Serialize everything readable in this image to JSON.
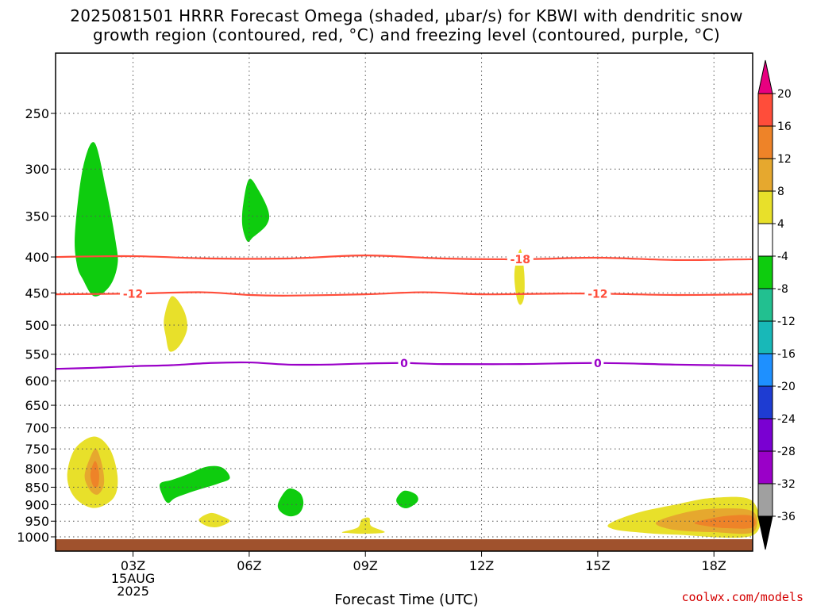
{
  "title": {
    "line1": "2025081501 HRRR Forecast Omega (shaded, μbar/s) for KBWI with dendritic snow",
    "line2": "growth region (contoured, red, °C) and freezing level (contoured, purple, °C)"
  },
  "credit": "coolwx.com/models",
  "colors": {
    "green": "#0ecc0e",
    "yellow": "#e8e02a",
    "lightorange": "#e6a82e",
    "orange": "#ee8328",
    "red": "#ff4d3a",
    "purple": "#9a00c8",
    "ground": "#a0522d",
    "gridline": "#555555"
  },
  "chart_data": {
    "type": "heatmap",
    "title": "2025081501 HRRR Forecast Omega (shaded, μbar/s) for KBWI with dendritic snow growth region (contoured, red, °C) and freezing level (contoured, purple, °C)",
    "xlabel": "Forecast Time (UTC)",
    "ylabel": "",
    "x_ticks": [
      {
        "hour": 3,
        "label": "03Z",
        "date": "15AUG",
        "year": "2025"
      },
      {
        "hour": 6,
        "label": "06Z"
      },
      {
        "hour": 9,
        "label": "09Z"
      },
      {
        "hour": 12,
        "label": "12Z"
      },
      {
        "hour": 15,
        "label": "15Z"
      },
      {
        "hour": 18,
        "label": "18Z"
      }
    ],
    "xlim": [
      1,
      19
    ],
    "y_ticks": [
      250,
      300,
      350,
      400,
      450,
      500,
      550,
      600,
      650,
      700,
      750,
      800,
      850,
      900,
      950,
      1000
    ],
    "ylim": [
      1000,
      200
    ],
    "y_scale": "log",
    "grid": true,
    "colorbar": {
      "labels": [
        "20",
        "16",
        "12",
        "8",
        "4",
        "-4",
        "-8",
        "-12",
        "-16",
        "-20",
        "-24",
        "-28",
        "-32",
        "-36"
      ],
      "colors": [
        "#ff4d3a",
        "#ee8328",
        "#e6a82e",
        "#e8e02a",
        "#ffffff",
        "#0ecc0e",
        "#22c090",
        "#18b8b8",
        "#1e90ff",
        "#1e3cd2",
        "#7a00d2",
        "#9a00c8",
        "#a0a0a0"
      ],
      "top_arrow": "#e80080",
      "bottom_arrow": "#000000"
    },
    "contours": [
      {
        "name": "-18",
        "color": "red",
        "label_at_hour": 13,
        "points": [
          [
            1,
            400
          ],
          [
            3,
            399
          ],
          [
            5,
            402
          ],
          [
            7,
            402
          ],
          [
            9,
            398
          ],
          [
            11,
            402
          ],
          [
            13,
            403
          ],
          [
            15,
            401
          ],
          [
            17,
            404
          ],
          [
            19,
            403
          ]
        ]
      },
      {
        "name": "-12",
        "color": "red",
        "label_at_hour": 3,
        "label_at_hour2": 15,
        "points": [
          [
            1,
            452
          ],
          [
            3,
            451
          ],
          [
            4.8,
            449
          ],
          [
            6,
            453
          ],
          [
            7,
            454
          ],
          [
            9,
            452
          ],
          [
            10.5,
            449
          ],
          [
            12,
            452
          ],
          [
            14,
            451
          ],
          [
            15,
            451
          ],
          [
            17,
            453
          ],
          [
            19,
            452
          ]
        ]
      },
      {
        "name": "0",
        "color": "purple",
        "label_at_hour": 10,
        "label_at_hour2": 15,
        "points": [
          [
            1,
            577
          ],
          [
            2,
            575
          ],
          [
            3,
            572
          ],
          [
            4,
            570
          ],
          [
            5,
            566
          ],
          [
            6,
            565
          ],
          [
            7,
            569
          ],
          [
            8,
            569
          ],
          [
            9,
            567
          ],
          [
            10,
            566
          ],
          [
            11,
            568
          ],
          [
            13,
            568
          ],
          [
            15,
            566
          ],
          [
            17,
            569
          ],
          [
            19,
            571
          ]
        ]
      }
    ],
    "shaded_regions": [
      {
        "class": "4 to 8",
        "color": "yellow",
        "points": [
          [
            1.3,
            820
          ],
          [
            1.5,
            750
          ],
          [
            2,
            720
          ],
          [
            2.4,
            750
          ],
          [
            2.6,
            820
          ],
          [
            2.5,
            880
          ],
          [
            2,
            910
          ],
          [
            1.5,
            880
          ]
        ]
      },
      {
        "class": "8 to 12",
        "color": "lightorange",
        "points": [
          [
            1.75,
            820
          ],
          [
            1.9,
            770
          ],
          [
            2.05,
            750
          ],
          [
            2.2,
            790
          ],
          [
            2.25,
            840
          ],
          [
            2.1,
            870
          ],
          [
            1.9,
            860
          ]
        ]
      },
      {
        "class": "12 to 16",
        "color": "orange",
        "points": [
          [
            1.9,
            815
          ],
          [
            2.02,
            780
          ],
          [
            2.12,
            810
          ],
          [
            2.1,
            845
          ],
          [
            1.98,
            848
          ]
        ]
      },
      {
        "class": "-4 to -8",
        "color": "green",
        "points": [
          [
            1.5,
            370
          ],
          [
            1.7,
            300
          ],
          [
            2,
            275
          ],
          [
            2.3,
            320
          ],
          [
            2.55,
            380
          ],
          [
            2.6,
            410
          ],
          [
            2.4,
            440
          ],
          [
            2,
            455
          ],
          [
            1.7,
            430
          ],
          [
            1.55,
            410
          ]
        ]
      },
      {
        "class": "-4 to -8",
        "color": "green",
        "points": [
          [
            5.85,
            335
          ],
          [
            6,
            310
          ],
          [
            6.25,
            322
          ],
          [
            6.5,
            345
          ],
          [
            6.45,
            360
          ],
          [
            6.1,
            375
          ],
          [
            5.95,
            380
          ],
          [
            5.82,
            360
          ]
        ]
      },
      {
        "class": "4 to 8",
        "color": "yellow",
        "points": [
          [
            3.8,
            490
          ],
          [
            4,
            455
          ],
          [
            4.3,
            475
          ],
          [
            4.4,
            505
          ],
          [
            4.2,
            535
          ],
          [
            3.95,
            545
          ],
          [
            3.85,
            520
          ]
        ]
      },
      {
        "class": "-4 to -8",
        "color": "green",
        "points": [
          [
            3.7,
            840
          ],
          [
            4,
            830
          ],
          [
            4.4,
            815
          ],
          [
            4.9,
            795
          ],
          [
            5.3,
            797
          ],
          [
            5.5,
            825
          ],
          [
            5.2,
            840
          ],
          [
            4.6,
            860
          ],
          [
            4.1,
            880
          ],
          [
            3.9,
            895
          ],
          [
            3.75,
            870
          ]
        ]
      },
      {
        "class": "4 to 8",
        "color": "yellow",
        "points": [
          [
            4.7,
            945
          ],
          [
            5,
            925
          ],
          [
            5.3,
            935
          ],
          [
            5.5,
            950
          ],
          [
            5.2,
            968
          ],
          [
            4.9,
            965
          ]
        ]
      },
      {
        "class": "-4 to -8",
        "color": "green",
        "points": [
          [
            6.75,
            895
          ],
          [
            7,
            855
          ],
          [
            7.3,
            865
          ],
          [
            7.4,
            895
          ],
          [
            7.3,
            925
          ],
          [
            7.05,
            935
          ],
          [
            6.8,
            920
          ]
        ]
      },
      {
        "class": "4 to 8",
        "color": "yellow",
        "points": [
          [
            8.4,
            985
          ],
          [
            8.8,
            970
          ],
          [
            8.9,
            945
          ],
          [
            9.1,
            940
          ],
          [
            9.15,
            965
          ],
          [
            9.5,
            985
          ],
          [
            9,
            990
          ],
          [
            8.6,
            988
          ]
        ]
      },
      {
        "class": "-4 to -8",
        "color": "green",
        "points": [
          [
            9.8,
            885
          ],
          [
            10,
            860
          ],
          [
            10.3,
            870
          ],
          [
            10.35,
            890
          ],
          [
            10.1,
            910
          ],
          [
            9.9,
            905
          ]
        ]
      },
      {
        "class": "4 to 8",
        "color": "yellow",
        "points": [
          [
            12.85,
            420
          ],
          [
            13,
            390
          ],
          [
            13.1,
            420
          ],
          [
            13.1,
            455
          ],
          [
            13,
            468
          ],
          [
            12.9,
            455
          ]
        ]
      },
      {
        "class": "4 to 8",
        "color": "yellow",
        "points": [
          [
            15.3,
            958
          ],
          [
            16,
            925
          ],
          [
            17,
            900
          ],
          [
            18,
            880
          ],
          [
            19,
            890
          ],
          [
            19,
            995
          ],
          [
            17,
            993
          ],
          [
            16,
            985
          ],
          [
            15.4,
            975
          ]
        ]
      },
      {
        "class": "8 to 12",
        "color": "lightorange",
        "points": [
          [
            16.5,
            955
          ],
          [
            17.2,
            925
          ],
          [
            18,
            912
          ],
          [
            19,
            920
          ],
          [
            19,
            985
          ],
          [
            18,
            985
          ],
          [
            17,
            978
          ]
        ]
      },
      {
        "class": "12 to 16",
        "color": "orange",
        "points": [
          [
            17.5,
            955
          ],
          [
            18,
            940
          ],
          [
            18.5,
            932
          ],
          [
            19,
            935
          ],
          [
            19,
            970
          ],
          [
            18.3,
            972
          ],
          [
            17.8,
            965
          ]
        ]
      }
    ]
  }
}
